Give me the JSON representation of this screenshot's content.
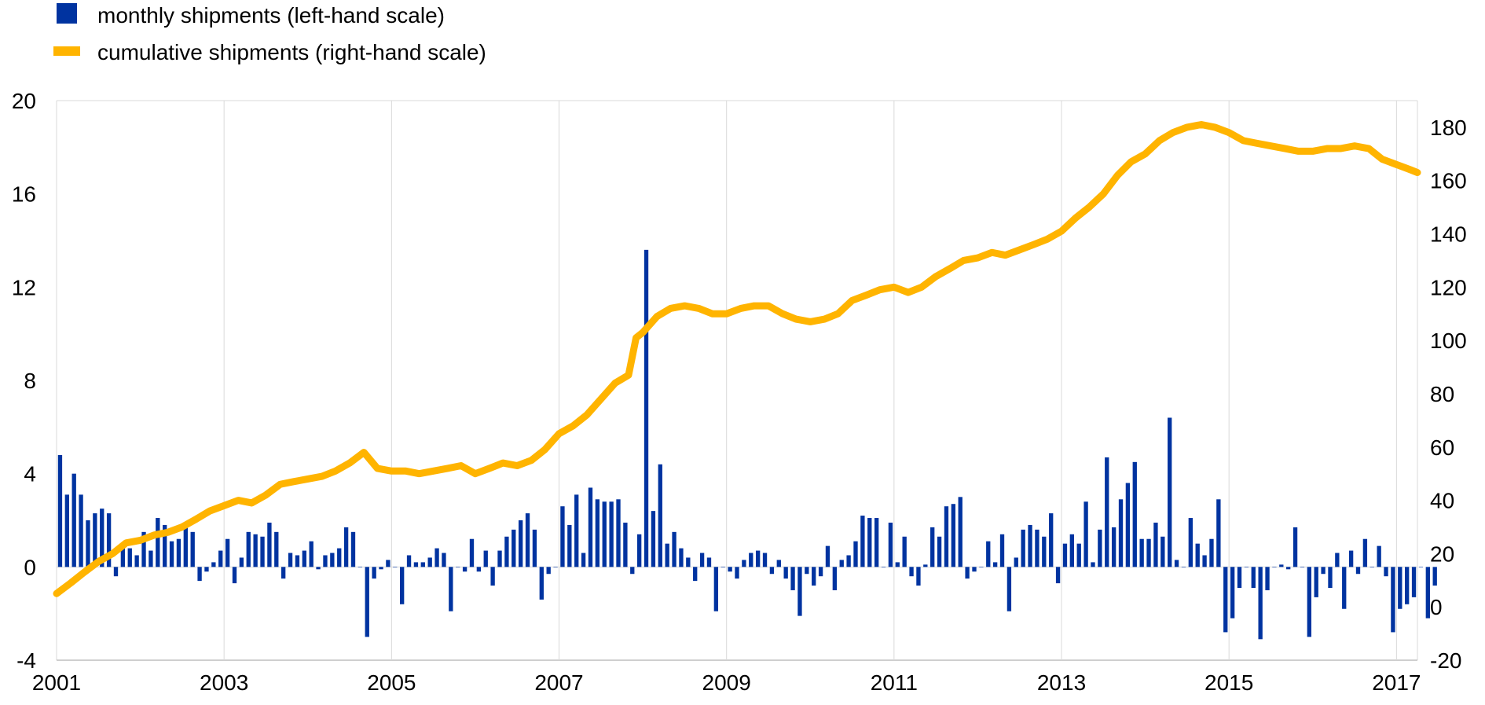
{
  "chart_data": {
    "type": "bar+line",
    "title": "",
    "legend": {
      "placement": "top-left",
      "entries": [
        {
          "name": "monthly shipments (left-hand scale)",
          "color": "#0033a0",
          "marker": "square"
        },
        {
          "name": "cumulative shipments (right-hand scale)",
          "color": "#ffb400",
          "marker": "line"
        }
      ]
    },
    "x_axis": {
      "range": [
        2001.0,
        2017.25
      ],
      "tick_labels": [
        "2001",
        "2003",
        "2005",
        "2007",
        "2009",
        "2011",
        "2013",
        "2015",
        "2017"
      ],
      "tick_values": [
        2001,
        2003,
        2005,
        2007,
        2009,
        2011,
        2013,
        2015,
        2017
      ]
    },
    "y_left": {
      "range": [
        -4,
        20
      ],
      "tick_labels": [
        "-4",
        "0",
        "4",
        "8",
        "12",
        "16",
        "20"
      ],
      "tick_values": [
        -4,
        0,
        4,
        8,
        12,
        16,
        20
      ]
    },
    "y_right": {
      "range": [
        -20,
        190
      ],
      "tick_labels": [
        "-20",
        "0",
        "20",
        "40",
        "60",
        "80",
        "100",
        "120",
        "140",
        "160",
        "180"
      ],
      "tick_values": [
        -20,
        0,
        20,
        40,
        60,
        80,
        100,
        120,
        140,
        160,
        180
      ]
    },
    "grid": {
      "vertical": true,
      "horizontal": false
    },
    "series": [
      {
        "name": "monthly shipments (left-hand scale)",
        "type": "bar",
        "axis": "left",
        "color": "#0033a0",
        "start": "2001-01",
        "values": [
          4.8,
          3.1,
          4.0,
          3.1,
          2.0,
          2.3,
          2.5,
          2.3,
          -0.4,
          0.8,
          0.8,
          0.5,
          1.5,
          0.7,
          2.1,
          1.8,
          1.1,
          1.2,
          1.7,
          1.5,
          -0.6,
          -0.2,
          0.2,
          0.7,
          1.2,
          -0.7,
          0.4,
          1.5,
          1.4,
          1.3,
          1.9,
          1.5,
          -0.5,
          0.6,
          0.5,
          0.7,
          1.1,
          -0.1,
          0.5,
          0.6,
          0.8,
          1.7,
          1.5,
          0.0,
          -3.0,
          -0.5,
          -0.1,
          0.3,
          0.0,
          -1.6,
          0.5,
          0.2,
          0.2,
          0.4,
          0.8,
          0.6,
          -1.9,
          0.0,
          -0.2,
          1.2,
          -0.2,
          0.7,
          -0.8,
          0.7,
          1.3,
          1.6,
          2.0,
          2.3,
          1.6,
          -1.4,
          -0.3,
          0.0,
          2.6,
          1.8,
          3.1,
          0.6,
          3.4,
          2.9,
          2.8,
          2.8,
          2.9,
          1.9,
          -0.3,
          1.4,
          13.6,
          2.4,
          4.4,
          1.0,
          1.5,
          0.8,
          0.4,
          -0.6,
          0.6,
          0.4,
          -1.9,
          0.0,
          -0.2,
          -0.5,
          0.3,
          0.6,
          0.7,
          0.6,
          -0.3,
          0.3,
          -0.5,
          -1.0,
          -2.1,
          -0.3,
          -0.8,
          -0.4,
          0.9,
          -1.0,
          0.3,
          0.5,
          1.1,
          2.2,
          2.1,
          2.1,
          0.0,
          1.9,
          0.2,
          1.3,
          -0.4,
          -0.8,
          0.1,
          1.7,
          1.3,
          2.6,
          2.7,
          3.0,
          -0.5,
          -0.2,
          0.0,
          1.1,
          0.2,
          1.4,
          -1.9,
          0.4,
          1.6,
          1.8,
          1.6,
          1.3,
          2.3,
          -0.7,
          1.0,
          1.4,
          1.0,
          2.8,
          0.2,
          1.6,
          4.7,
          1.7,
          2.9,
          3.6,
          4.5,
          1.2,
          1.2,
          1.9,
          1.3,
          6.4,
          0.3,
          0.0,
          2.1,
          1.0,
          0.5,
          1.2,
          2.9,
          -2.8,
          -2.2,
          -0.9,
          0.0,
          -0.9,
          -3.1,
          -1.0,
          0.0,
          0.1,
          -0.1,
          1.7,
          0.0,
          -3.0,
          -1.3,
          -0.3,
          -0.9,
          0.6,
          -1.8,
          0.7,
          -0.3,
          1.2,
          0.0,
          0.9,
          -0.4,
          -2.8,
          -1.8,
          -1.6,
          -1.3,
          0.0,
          -2.2,
          -0.8
        ]
      },
      {
        "name": "cumulative shipments (right-hand scale)",
        "type": "line",
        "axis": "right",
        "color": "#ffb400",
        "points": [
          [
            2001.0,
            5
          ],
          [
            2001.17,
            9
          ],
          [
            2001.33,
            13
          ],
          [
            2001.5,
            17
          ],
          [
            2001.67,
            20
          ],
          [
            2001.83,
            24
          ],
          [
            2002.0,
            25
          ],
          [
            2002.17,
            27
          ],
          [
            2002.33,
            28
          ],
          [
            2002.5,
            30
          ],
          [
            2002.67,
            33
          ],
          [
            2002.83,
            36
          ],
          [
            2003.0,
            38
          ],
          [
            2003.17,
            40
          ],
          [
            2003.33,
            39
          ],
          [
            2003.5,
            42
          ],
          [
            2003.67,
            46
          ],
          [
            2003.83,
            47
          ],
          [
            2004.0,
            48
          ],
          [
            2004.17,
            49
          ],
          [
            2004.33,
            51
          ],
          [
            2004.5,
            54
          ],
          [
            2004.67,
            58
          ],
          [
            2004.83,
            52
          ],
          [
            2005.0,
            51
          ],
          [
            2005.17,
            51
          ],
          [
            2005.33,
            50
          ],
          [
            2005.5,
            51
          ],
          [
            2005.67,
            52
          ],
          [
            2005.83,
            53
          ],
          [
            2006.0,
            50
          ],
          [
            2006.17,
            52
          ],
          [
            2006.33,
            54
          ],
          [
            2006.5,
            53
          ],
          [
            2006.67,
            55
          ],
          [
            2006.83,
            59
          ],
          [
            2007.0,
            65
          ],
          [
            2007.17,
            68
          ],
          [
            2007.33,
            72
          ],
          [
            2007.5,
            78
          ],
          [
            2007.67,
            84
          ],
          [
            2007.83,
            87
          ],
          [
            2007.92,
            101
          ],
          [
            2008.0,
            103
          ],
          [
            2008.17,
            109
          ],
          [
            2008.33,
            112
          ],
          [
            2008.5,
            113
          ],
          [
            2008.67,
            112
          ],
          [
            2008.83,
            110
          ],
          [
            2009.0,
            110
          ],
          [
            2009.17,
            112
          ],
          [
            2009.33,
            113
          ],
          [
            2009.5,
            113
          ],
          [
            2009.67,
            110
          ],
          [
            2009.83,
            108
          ],
          [
            2010.0,
            107
          ],
          [
            2010.17,
            108
          ],
          [
            2010.33,
            110
          ],
          [
            2010.5,
            115
          ],
          [
            2010.67,
            117
          ],
          [
            2010.83,
            119
          ],
          [
            2011.0,
            120
          ],
          [
            2011.17,
            118
          ],
          [
            2011.33,
            120
          ],
          [
            2011.5,
            124
          ],
          [
            2011.67,
            127
          ],
          [
            2011.83,
            130
          ],
          [
            2012.0,
            131
          ],
          [
            2012.17,
            133
          ],
          [
            2012.33,
            132
          ],
          [
            2012.5,
            134
          ],
          [
            2012.67,
            136
          ],
          [
            2012.83,
            138
          ],
          [
            2013.0,
            141
          ],
          [
            2013.17,
            146
          ],
          [
            2013.33,
            150
          ],
          [
            2013.5,
            155
          ],
          [
            2013.67,
            162
          ],
          [
            2013.83,
            167
          ],
          [
            2014.0,
            170
          ],
          [
            2014.17,
            175
          ],
          [
            2014.33,
            178
          ],
          [
            2014.5,
            180
          ],
          [
            2014.67,
            181
          ],
          [
            2014.83,
            180
          ],
          [
            2015.0,
            178
          ],
          [
            2015.17,
            175
          ],
          [
            2015.33,
            174
          ],
          [
            2015.5,
            173
          ],
          [
            2015.67,
            172
          ],
          [
            2015.83,
            171
          ],
          [
            2016.0,
            171
          ],
          [
            2016.17,
            172
          ],
          [
            2016.33,
            172
          ],
          [
            2016.5,
            173
          ],
          [
            2016.67,
            172
          ],
          [
            2016.83,
            168
          ],
          [
            2017.0,
            166
          ],
          [
            2017.17,
            164
          ],
          [
            2017.25,
            163
          ]
        ]
      }
    ]
  }
}
